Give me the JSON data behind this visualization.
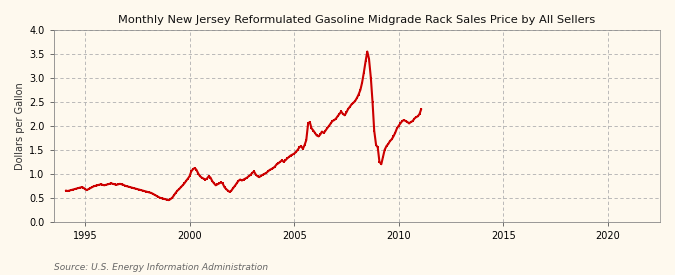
{
  "title": "Monthly New Jersey Reformulated Gasoline Midgrade Rack Sales Price by All Sellers",
  "ylabel": "Dollars per Gallon",
  "source": "Source: U.S. Energy Information Administration",
  "background_color": "#fef9ee",
  "plot_bg_color": "#fef9ee",
  "line_color": "#cc0000",
  "xlim": [
    1993.5,
    2022.5
  ],
  "ylim": [
    0.0,
    4.0
  ],
  "yticks": [
    0.0,
    0.5,
    1.0,
    1.5,
    2.0,
    2.5,
    3.0,
    3.5,
    4.0
  ],
  "xticks": [
    1995,
    2000,
    2005,
    2010,
    2015,
    2020
  ],
  "data": [
    [
      1994.08,
      0.65
    ],
    [
      1994.17,
      0.64
    ],
    [
      1994.25,
      0.65
    ],
    [
      1994.33,
      0.66
    ],
    [
      1994.42,
      0.67
    ],
    [
      1994.5,
      0.68
    ],
    [
      1994.58,
      0.69
    ],
    [
      1994.67,
      0.7
    ],
    [
      1994.75,
      0.71
    ],
    [
      1994.83,
      0.72
    ],
    [
      1994.92,
      0.71
    ],
    [
      1995.0,
      0.68
    ],
    [
      1995.08,
      0.66
    ],
    [
      1995.17,
      0.68
    ],
    [
      1995.25,
      0.7
    ],
    [
      1995.33,
      0.72
    ],
    [
      1995.42,
      0.74
    ],
    [
      1995.5,
      0.75
    ],
    [
      1995.58,
      0.76
    ],
    [
      1995.67,
      0.77
    ],
    [
      1995.75,
      0.78
    ],
    [
      1995.83,
      0.77
    ],
    [
      1995.92,
      0.76
    ],
    [
      1996.0,
      0.77
    ],
    [
      1996.08,
      0.78
    ],
    [
      1996.17,
      0.79
    ],
    [
      1996.25,
      0.8
    ],
    [
      1996.33,
      0.79
    ],
    [
      1996.42,
      0.78
    ],
    [
      1996.5,
      0.77
    ],
    [
      1996.58,
      0.78
    ],
    [
      1996.67,
      0.79
    ],
    [
      1996.75,
      0.78
    ],
    [
      1996.83,
      0.77
    ],
    [
      1996.92,
      0.75
    ],
    [
      1997.0,
      0.74
    ],
    [
      1997.08,
      0.73
    ],
    [
      1997.17,
      0.72
    ],
    [
      1997.25,
      0.71
    ],
    [
      1997.33,
      0.7
    ],
    [
      1997.42,
      0.69
    ],
    [
      1997.5,
      0.68
    ],
    [
      1997.58,
      0.67
    ],
    [
      1997.67,
      0.66
    ],
    [
      1997.75,
      0.65
    ],
    [
      1997.83,
      0.64
    ],
    [
      1997.92,
      0.63
    ],
    [
      1998.0,
      0.62
    ],
    [
      1998.08,
      0.61
    ],
    [
      1998.17,
      0.6
    ],
    [
      1998.25,
      0.58
    ],
    [
      1998.33,
      0.56
    ],
    [
      1998.42,
      0.54
    ],
    [
      1998.5,
      0.52
    ],
    [
      1998.58,
      0.5
    ],
    [
      1998.67,
      0.49
    ],
    [
      1998.75,
      0.48
    ],
    [
      1998.83,
      0.47
    ],
    [
      1998.92,
      0.46
    ],
    [
      1999.0,
      0.45
    ],
    [
      1999.08,
      0.47
    ],
    [
      1999.17,
      0.5
    ],
    [
      1999.25,
      0.55
    ],
    [
      1999.33,
      0.6
    ],
    [
      1999.42,
      0.65
    ],
    [
      1999.5,
      0.68
    ],
    [
      1999.58,
      0.72
    ],
    [
      1999.67,
      0.76
    ],
    [
      1999.75,
      0.8
    ],
    [
      1999.83,
      0.85
    ],
    [
      1999.92,
      0.9
    ],
    [
      2000.0,
      0.95
    ],
    [
      2000.08,
      1.05
    ],
    [
      2000.17,
      1.1
    ],
    [
      2000.25,
      1.12
    ],
    [
      2000.33,
      1.08
    ],
    [
      2000.42,
      1.0
    ],
    [
      2000.5,
      0.95
    ],
    [
      2000.58,
      0.92
    ],
    [
      2000.67,
      0.9
    ],
    [
      2000.75,
      0.88
    ],
    [
      2000.83,
      0.9
    ],
    [
      2000.92,
      0.95
    ],
    [
      2001.0,
      0.92
    ],
    [
      2001.08,
      0.85
    ],
    [
      2001.17,
      0.8
    ],
    [
      2001.25,
      0.76
    ],
    [
      2001.33,
      0.78
    ],
    [
      2001.42,
      0.8
    ],
    [
      2001.5,
      0.82
    ],
    [
      2001.58,
      0.8
    ],
    [
      2001.67,
      0.72
    ],
    [
      2001.75,
      0.68
    ],
    [
      2001.83,
      0.65
    ],
    [
      2001.92,
      0.62
    ],
    [
      2002.0,
      0.65
    ],
    [
      2002.08,
      0.7
    ],
    [
      2002.17,
      0.75
    ],
    [
      2002.25,
      0.8
    ],
    [
      2002.33,
      0.85
    ],
    [
      2002.42,
      0.88
    ],
    [
      2002.5,
      0.86
    ],
    [
      2002.58,
      0.88
    ],
    [
      2002.67,
      0.9
    ],
    [
      2002.75,
      0.92
    ],
    [
      2002.83,
      0.95
    ],
    [
      2002.92,
      0.98
    ],
    [
      2003.0,
      1.02
    ],
    [
      2003.08,
      1.05
    ],
    [
      2003.17,
      0.98
    ],
    [
      2003.25,
      0.95
    ],
    [
      2003.33,
      0.93
    ],
    [
      2003.42,
      0.96
    ],
    [
      2003.5,
      0.98
    ],
    [
      2003.58,
      1.0
    ],
    [
      2003.67,
      1.02
    ],
    [
      2003.75,
      1.05
    ],
    [
      2003.83,
      1.08
    ],
    [
      2003.92,
      1.1
    ],
    [
      2004.0,
      1.12
    ],
    [
      2004.08,
      1.15
    ],
    [
      2004.17,
      1.2
    ],
    [
      2004.25,
      1.22
    ],
    [
      2004.33,
      1.25
    ],
    [
      2004.42,
      1.28
    ],
    [
      2004.5,
      1.25
    ],
    [
      2004.58,
      1.28
    ],
    [
      2004.67,
      1.32
    ],
    [
      2004.75,
      1.35
    ],
    [
      2004.83,
      1.38
    ],
    [
      2004.92,
      1.4
    ],
    [
      2005.0,
      1.42
    ],
    [
      2005.08,
      1.45
    ],
    [
      2005.17,
      1.5
    ],
    [
      2005.25,
      1.55
    ],
    [
      2005.33,
      1.58
    ],
    [
      2005.42,
      1.52
    ],
    [
      2005.5,
      1.6
    ],
    [
      2005.58,
      1.7
    ],
    [
      2005.67,
      2.05
    ],
    [
      2005.75,
      2.08
    ],
    [
      2005.83,
      1.95
    ],
    [
      2005.92,
      1.9
    ],
    [
      2006.0,
      1.85
    ],
    [
      2006.08,
      1.8
    ],
    [
      2006.17,
      1.78
    ],
    [
      2006.25,
      1.82
    ],
    [
      2006.33,
      1.88
    ],
    [
      2006.42,
      1.85
    ],
    [
      2006.5,
      1.9
    ],
    [
      2006.58,
      1.95
    ],
    [
      2006.67,
      2.0
    ],
    [
      2006.75,
      2.05
    ],
    [
      2006.83,
      2.1
    ],
    [
      2006.92,
      2.12
    ],
    [
      2007.0,
      2.15
    ],
    [
      2007.08,
      2.2
    ],
    [
      2007.17,
      2.25
    ],
    [
      2007.25,
      2.3
    ],
    [
      2007.33,
      2.25
    ],
    [
      2007.42,
      2.22
    ],
    [
      2007.5,
      2.28
    ],
    [
      2007.58,
      2.35
    ],
    [
      2007.67,
      2.4
    ],
    [
      2007.75,
      2.45
    ],
    [
      2007.83,
      2.48
    ],
    [
      2007.92,
      2.52
    ],
    [
      2008.0,
      2.58
    ],
    [
      2008.08,
      2.65
    ],
    [
      2008.17,
      2.75
    ],
    [
      2008.25,
      2.9
    ],
    [
      2008.33,
      3.1
    ],
    [
      2008.42,
      3.35
    ],
    [
      2008.5,
      3.55
    ],
    [
      2008.58,
      3.4
    ],
    [
      2008.67,
      3.0
    ],
    [
      2008.75,
      2.5
    ],
    [
      2008.83,
      1.9
    ],
    [
      2008.92,
      1.6
    ],
    [
      2009.0,
      1.55
    ],
    [
      2009.08,
      1.25
    ],
    [
      2009.17,
      1.2
    ],
    [
      2009.25,
      1.35
    ],
    [
      2009.33,
      1.5
    ],
    [
      2009.42,
      1.58
    ],
    [
      2009.5,
      1.62
    ],
    [
      2009.58,
      1.68
    ],
    [
      2009.67,
      1.72
    ],
    [
      2009.75,
      1.78
    ],
    [
      2009.83,
      1.85
    ],
    [
      2009.92,
      1.95
    ],
    [
      2010.0,
      2.0
    ],
    [
      2010.08,
      2.05
    ],
    [
      2010.17,
      2.1
    ],
    [
      2010.25,
      2.12
    ],
    [
      2010.33,
      2.1
    ],
    [
      2010.42,
      2.08
    ],
    [
      2010.5,
      2.05
    ],
    [
      2010.58,
      2.08
    ],
    [
      2010.67,
      2.1
    ],
    [
      2010.75,
      2.15
    ],
    [
      2010.83,
      2.18
    ],
    [
      2010.92,
      2.2
    ],
    [
      2011.0,
      2.25
    ],
    [
      2011.08,
      2.35
    ]
  ]
}
